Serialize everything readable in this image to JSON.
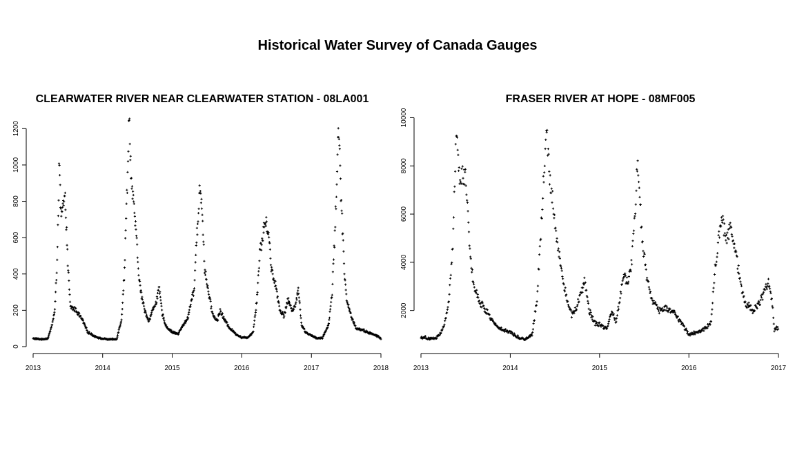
{
  "figure": {
    "title": "Historical Water Survey of Canada Gauges"
  },
  "chart_data": [
    {
      "type": "scatter",
      "title": "CLEARWATER RIVER NEAR CLEARWATER STATION - 08LA001",
      "xlabel": "",
      "ylabel": "",
      "xlim": [
        "2013-01-01",
        "2018-01-01"
      ],
      "ylim": [
        0,
        1300
      ],
      "x_ticks": [
        "2013",
        "2014",
        "2015",
        "2016",
        "2017",
        "2018"
      ],
      "y_ticks": [
        0,
        200,
        400,
        600,
        800,
        1000,
        1200
      ],
      "marker": "+",
      "color": "#000000",
      "anchors": [
        [
          "2013-01-01",
          45
        ],
        [
          "2013-02-15",
          40
        ],
        [
          "2013-03-20",
          45
        ],
        [
          "2013-04-10",
          120
        ],
        [
          "2013-04-25",
          200
        ],
        [
          "2013-05-05",
          420
        ],
        [
          "2013-05-12",
          700
        ],
        [
          "2013-05-18",
          1000
        ],
        [
          "2013-05-28",
          700
        ],
        [
          "2013-06-08",
          780
        ],
        [
          "2013-06-20",
          800
        ],
        [
          "2013-07-01",
          480
        ],
        [
          "2013-07-15",
          220
        ],
        [
          "2013-08-15",
          200
        ],
        [
          "2013-09-15",
          150
        ],
        [
          "2013-10-15",
          80
        ],
        [
          "2013-11-15",
          60
        ],
        [
          "2013-12-20",
          45
        ],
        [
          "2014-02-01",
          40
        ],
        [
          "2014-03-15",
          40
        ],
        [
          "2014-04-10",
          150
        ],
        [
          "2014-04-25",
          400
        ],
        [
          "2014-05-10",
          900
        ],
        [
          "2014-05-20",
          1280
        ],
        [
          "2014-06-01",
          900
        ],
        [
          "2014-06-15",
          750
        ],
        [
          "2014-06-25",
          650
        ],
        [
          "2014-07-05",
          450
        ],
        [
          "2014-07-20",
          300
        ],
        [
          "2014-08-10",
          200
        ],
        [
          "2014-09-01",
          140
        ],
        [
          "2014-09-20",
          200
        ],
        [
          "2014-10-10",
          250
        ],
        [
          "2014-10-25",
          320
        ],
        [
          "2014-11-10",
          180
        ],
        [
          "2014-12-01",
          110
        ],
        [
          "2015-01-01",
          80
        ],
        [
          "2015-02-01",
          70
        ],
        [
          "2015-03-01",
          120
        ],
        [
          "2015-03-25",
          160
        ],
        [
          "2015-04-10",
          250
        ],
        [
          "2015-04-25",
          300
        ],
        [
          "2015-05-10",
          600
        ],
        [
          "2015-05-28",
          900
        ],
        [
          "2015-06-10",
          700
        ],
        [
          "2015-06-20",
          430
        ],
        [
          "2015-07-10",
          300
        ],
        [
          "2015-08-01",
          180
        ],
        [
          "2015-08-25",
          140
        ],
        [
          "2015-09-10",
          200
        ],
        [
          "2015-10-01",
          150
        ],
        [
          "2015-11-01",
          100
        ],
        [
          "2015-12-01",
          70
        ],
        [
          "2016-01-01",
          50
        ],
        [
          "2016-02-01",
          50
        ],
        [
          "2016-03-01",
          80
        ],
        [
          "2016-03-20",
          250
        ],
        [
          "2016-04-05",
          520
        ],
        [
          "2016-04-20",
          600
        ],
        [
          "2016-05-01",
          690
        ],
        [
          "2016-05-20",
          650
        ],
        [
          "2016-06-05",
          420
        ],
        [
          "2016-06-25",
          350
        ],
        [
          "2016-07-20",
          200
        ],
        [
          "2016-08-10",
          170
        ],
        [
          "2016-09-01",
          260
        ],
        [
          "2016-09-20",
          200
        ],
        [
          "2016-10-10",
          230
        ],
        [
          "2016-10-25",
          320
        ],
        [
          "2016-11-10",
          120
        ],
        [
          "2016-12-01",
          80
        ],
        [
          "2017-01-01",
          60
        ],
        [
          "2017-02-01",
          45
        ],
        [
          "2017-03-01",
          50
        ],
        [
          "2017-04-01",
          120
        ],
        [
          "2017-04-20",
          300
        ],
        [
          "2017-05-05",
          650
        ],
        [
          "2017-05-15",
          950
        ],
        [
          "2017-05-25",
          1250
        ],
        [
          "2017-06-05",
          850
        ],
        [
          "2017-06-15",
          600
        ],
        [
          "2017-06-25",
          380
        ],
        [
          "2017-07-05",
          250
        ],
        [
          "2017-08-01",
          160
        ],
        [
          "2017-08-25",
          100
        ],
        [
          "2017-10-01",
          90
        ],
        [
          "2017-11-01",
          75
        ],
        [
          "2017-12-10",
          60
        ],
        [
          "2018-01-01",
          45
        ]
      ]
    },
    {
      "type": "scatter",
      "title": "FRASER RIVER AT HOPE - 08MF005",
      "xlabel": "",
      "ylabel": "",
      "xlim": [
        "2013-01-01",
        "2017-01-01"
      ],
      "ylim": [
        500,
        10300
      ],
      "x_ticks": [
        "2013",
        "2014",
        "2015",
        "2016",
        "2017"
      ],
      "y_ticks": [
        2000,
        4000,
        6000,
        8000,
        10000
      ],
      "marker": "+",
      "color": "#000000",
      "anchors": [
        [
          "2013-01-01",
          900
        ],
        [
          "2013-02-01",
          850
        ],
        [
          "2013-03-01",
          850
        ],
        [
          "2013-03-20",
          1000
        ],
        [
          "2013-04-10",
          1500
        ],
        [
          "2013-04-25",
          2500
        ],
        [
          "2013-05-10",
          4500
        ],
        [
          "2013-05-20",
          7500
        ],
        [
          "2013-05-28",
          10000
        ],
        [
          "2013-06-05",
          7500
        ],
        [
          "2013-06-20",
          7600
        ],
        [
          "2013-07-01",
          7700
        ],
        [
          "2013-07-10",
          6500
        ],
        [
          "2013-07-20",
          4500
        ],
        [
          "2013-08-05",
          3000
        ],
        [
          "2013-09-01",
          2300
        ],
        [
          "2013-10-01",
          1900
        ],
        [
          "2013-11-01",
          1400
        ],
        [
          "2013-12-01",
          1200
        ],
        [
          "2014-01-01",
          1100
        ],
        [
          "2014-02-01",
          900
        ],
        [
          "2014-03-01",
          800
        ],
        [
          "2014-04-01",
          1000
        ],
        [
          "2014-04-20",
          2500
        ],
        [
          "2014-05-05",
          5000
        ],
        [
          "2014-05-20",
          8000
        ],
        [
          "2014-05-28",
          9800
        ],
        [
          "2014-06-10",
          7500
        ],
        [
          "2014-06-25",
          6500
        ],
        [
          "2014-07-10",
          5000
        ],
        [
          "2014-08-01",
          3500
        ],
        [
          "2014-08-20",
          2500
        ],
        [
          "2014-09-10",
          1800
        ],
        [
          "2014-10-01",
          2200
        ],
        [
          "2014-10-20",
          2800
        ],
        [
          "2014-11-01",
          3200
        ],
        [
          "2014-11-20",
          2000
        ],
        [
          "2014-12-10",
          1500
        ],
        [
          "2015-01-01",
          1400
        ],
        [
          "2015-02-01",
          1200
        ],
        [
          "2015-02-20",
          2000
        ],
        [
          "2015-03-10",
          1500
        ],
        [
          "2015-03-25",
          2500
        ],
        [
          "2015-04-10",
          3500
        ],
        [
          "2015-04-25",
          3200
        ],
        [
          "2015-05-10",
          3800
        ],
        [
          "2015-05-20",
          5000
        ],
        [
          "2015-06-05",
          8000
        ],
        [
          "2015-06-15",
          6500
        ],
        [
          "2015-06-25",
          5000
        ],
        [
          "2015-07-10",
          3500
        ],
        [
          "2015-08-01",
          2500
        ],
        [
          "2015-09-01",
          2000
        ],
        [
          "2015-10-01",
          2100
        ],
        [
          "2015-11-01",
          1900
        ],
        [
          "2015-12-01",
          1500
        ],
        [
          "2016-01-01",
          1000
        ],
        [
          "2016-02-01",
          1100
        ],
        [
          "2016-03-01",
          1200
        ],
        [
          "2016-04-01",
          1500
        ],
        [
          "2016-04-15",
          3500
        ],
        [
          "2016-05-01",
          5000
        ],
        [
          "2016-05-15",
          5800
        ],
        [
          "2016-06-01",
          5000
        ],
        [
          "2016-06-20",
          5500
        ],
        [
          "2016-07-10",
          4500
        ],
        [
          "2016-08-01",
          3000
        ],
        [
          "2016-08-20",
          2300
        ],
        [
          "2016-09-20",
          2000
        ],
        [
          "2016-10-20",
          2400
        ],
        [
          "2016-11-20",
          3200
        ],
        [
          "2016-12-05",
          2500
        ],
        [
          "2016-12-15",
          1200
        ],
        [
          "2017-01-01",
          1300
        ]
      ]
    }
  ]
}
